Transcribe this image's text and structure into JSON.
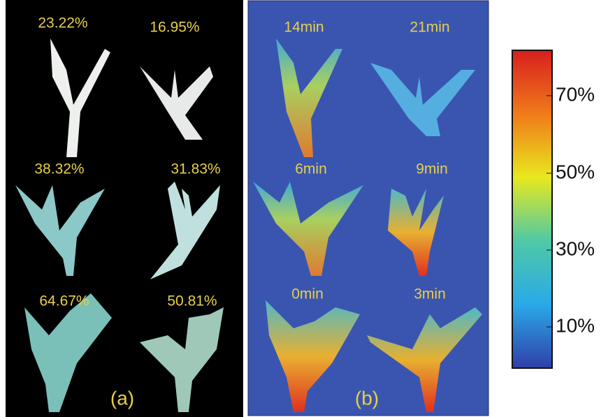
{
  "panel_a": {
    "labels": [
      "23.22%",
      "16.95%",
      "38.32%",
      "31.83%",
      "64.67%",
      "50.81%"
    ],
    "caption": "(a)"
  },
  "panel_b": {
    "labels": [
      "14min",
      "21min",
      "6min",
      "9min",
      "0min",
      "3min"
    ],
    "caption": "(b)"
  },
  "colorbar": {
    "ticks": [
      "70%",
      "50%",
      "30%",
      "10%"
    ]
  }
}
